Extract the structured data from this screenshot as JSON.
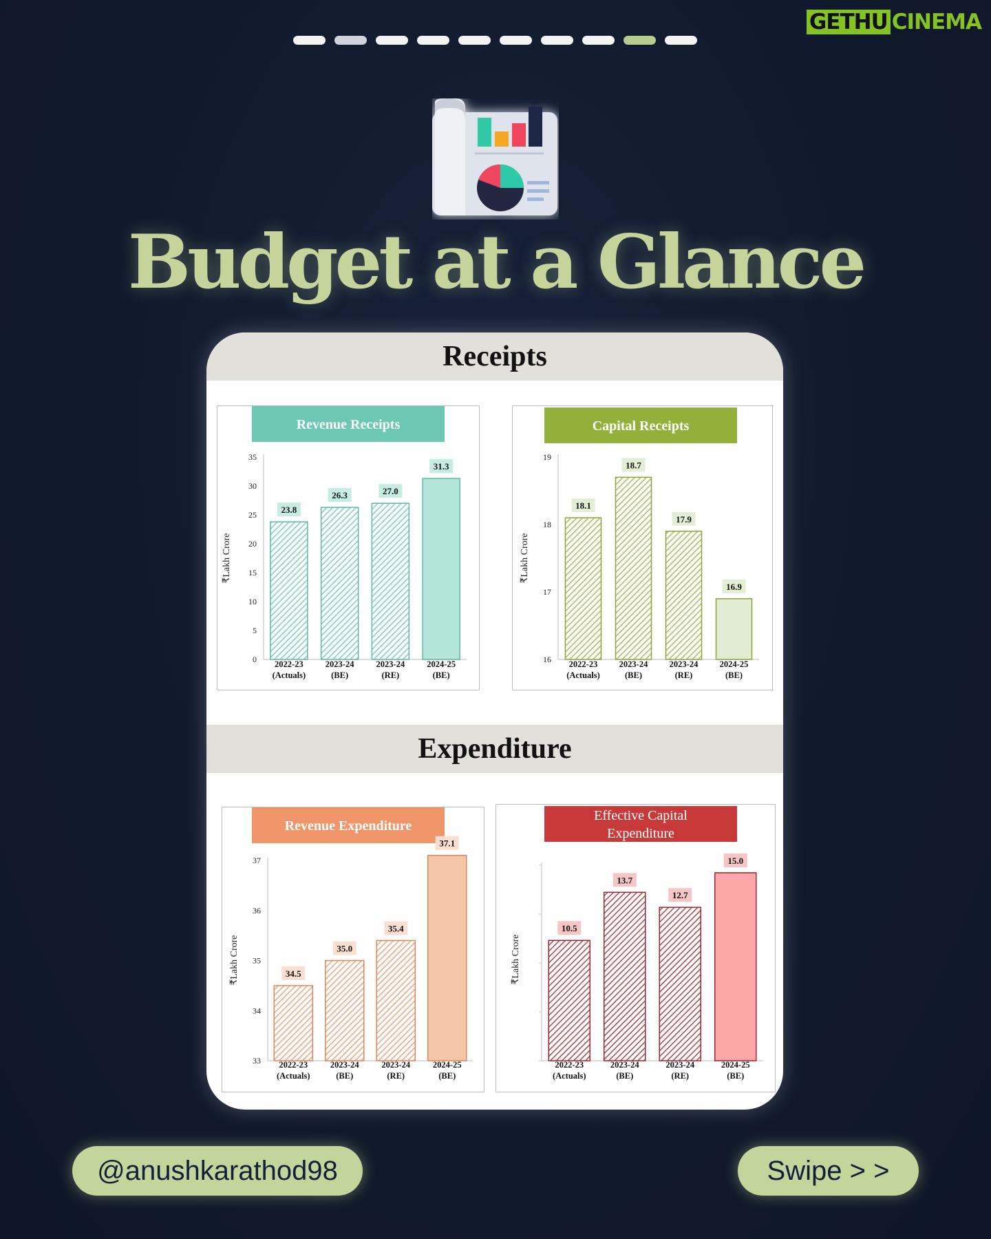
{
  "watermark": {
    "part1": "GETHU",
    "part2": "CINEMA"
  },
  "progress": {
    "count": 10,
    "active_index": 8,
    "muted_index": 1
  },
  "title": "Budget at a Glance",
  "sections": {
    "receipts": "Receipts",
    "expenditure": "Expenditure"
  },
  "handle": "@anushkarathod98",
  "swipe_label": "Swipe > >",
  "colors": {
    "background": "#111a2c",
    "title": "#c4d49a",
    "pill": "#c2d59b",
    "revenue_receipts": "#6cc8b2",
    "capital_receipts": "#93b13a",
    "revenue_expenditure": "#f0956a",
    "capital_expenditure": "#c83a3a"
  },
  "chart_data": [
    {
      "id": "revenue-receipts",
      "type": "bar",
      "title": "Revenue Receipts",
      "ylabel": "₹Lakh Crore",
      "categories": [
        [
          "2022-23",
          "(Actuals)"
        ],
        [
          "2023-24",
          "(BE)"
        ],
        [
          "2023-24",
          "(RE)"
        ],
        [
          "2024-25",
          "(BE)"
        ]
      ],
      "values": [
        23.8,
        26.3,
        27.0,
        31.3
      ],
      "labels": [
        "23.8",
        "26.3",
        "27.0",
        "31.3"
      ],
      "ylim": [
        0,
        35
      ],
      "yticks": [
        0,
        5,
        10,
        15,
        20,
        25,
        30,
        35
      ],
      "show_yticks": true,
      "colors": {
        "header": "#6cc8b2",
        "stroke": "#5cb8a4",
        "hatch": "#6cc8b2",
        "solid": "#b5e6da",
        "label_bg": "#c7ece2"
      }
    },
    {
      "id": "capital-receipts",
      "type": "bar",
      "title": "Capital Receipts",
      "ylabel": "₹Lakh Crore",
      "categories": [
        [
          "2022-23",
          "(Actuals)"
        ],
        [
          "2023-24",
          "(BE)"
        ],
        [
          "2023-24",
          "(RE)"
        ],
        [
          "2024-25",
          "(BE)"
        ]
      ],
      "values": [
        18.1,
        18.7,
        17.9,
        16.9
      ],
      "labels": [
        "18.1",
        "18.7",
        "17.9",
        "16.9"
      ],
      "ylim": [
        16,
        19
      ],
      "yticks": [
        16,
        17,
        18,
        19
      ],
      "show_yticks": true,
      "colors": {
        "header": "#93b13a",
        "stroke": "#8ba33a",
        "hatch": "#9ab543",
        "solid": "#e1ecd3",
        "label_bg": "#e3eed5"
      }
    },
    {
      "id": "revenue-expenditure",
      "type": "bar",
      "title": "Revenue Expenditure",
      "ylabel": "₹Lakh Crore",
      "categories": [
        [
          "2022-23",
          "(Actuals)"
        ],
        [
          "2023-24",
          "(BE)"
        ],
        [
          "2023-24",
          "(RE)"
        ],
        [
          "2024-25",
          "(BE)"
        ]
      ],
      "values": [
        34.5,
        35.0,
        35.4,
        37.1
      ],
      "labels": [
        "34.5",
        "35.0",
        "35.4",
        "37.1"
      ],
      "ylim": [
        33,
        37
      ],
      "yticks": [
        33,
        34,
        35,
        36,
        37
      ],
      "show_yticks": true,
      "colors": {
        "header": "#f0956a",
        "stroke": "#e0855a",
        "hatch": "#e99a70",
        "solid": "#f5c6a8",
        "label_bg": "#fbe0d2"
      }
    },
    {
      "id": "effective-capital-expenditure",
      "type": "bar",
      "title": "Effective Capital Expenditure",
      "title_lines": [
        "Effective Capital",
        "Expenditure"
      ],
      "ylabel": "₹Lakh Crore",
      "categories": [
        [
          "2022-23",
          "(Actuals)"
        ],
        [
          "2023-24",
          "(BE)"
        ],
        [
          "2023-24",
          "(RE)"
        ],
        [
          "2024-25",
          "(BE)"
        ]
      ],
      "values": [
        10.5,
        13.7,
        12.7,
        15.0
      ],
      "labels": [
        "10.5",
        "13.7",
        "12.7",
        "15.0"
      ],
      "ylim": [
        2.5,
        15.5
      ],
      "yticks": [],
      "show_yticks": false,
      "colors": {
        "header": "#c83a3a",
        "stroke": "#9e2630",
        "hatch": "#a32a33",
        "solid": "#fba7a7",
        "label_bg": "#f6c5c5"
      }
    }
  ]
}
